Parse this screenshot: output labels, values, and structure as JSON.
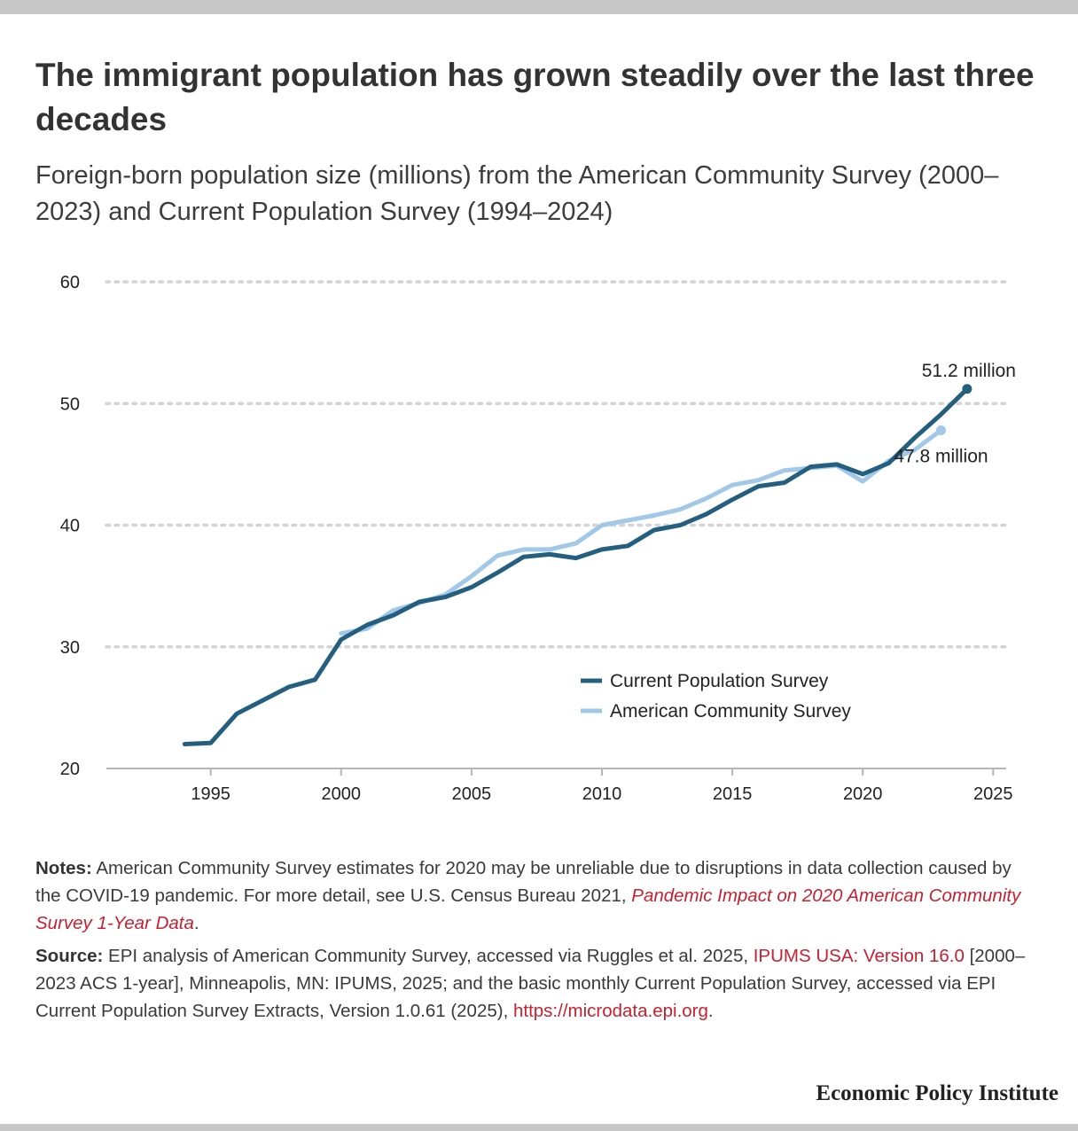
{
  "header": {
    "title": "The immigrant population has grown steadily over the last three decades",
    "subtitle": "Foreign-born population size (millions) from the American Community Survey (2000–2023) and Current Population Survey (1994–2024)"
  },
  "chart_data": {
    "type": "line",
    "xlim": [
      1991,
      2025.5
    ],
    "ylim": [
      20,
      60
    ],
    "x_ticks": [
      1995,
      2000,
      2005,
      2010,
      2015,
      2020,
      2025
    ],
    "y_ticks": [
      20,
      30,
      40,
      50,
      60
    ],
    "grid": "horizontal dotted",
    "legend_position": "bottom-right",
    "series": [
      {
        "name": "Current Population Survey",
        "color": "#245f80",
        "x": [
          1994,
          1995,
          1996,
          1997,
          1998,
          1999,
          2000,
          2001,
          2002,
          2003,
          2004,
          2005,
          2006,
          2007,
          2008,
          2009,
          2010,
          2011,
          2012,
          2013,
          2014,
          2015,
          2016,
          2017,
          2018,
          2019,
          2020,
          2021,
          2022,
          2023,
          2024
        ],
        "y": [
          22.0,
          22.1,
          24.5,
          25.6,
          26.7,
          27.3,
          30.6,
          31.8,
          32.6,
          33.7,
          34.1,
          34.9,
          36.1,
          37.4,
          37.6,
          37.3,
          38.0,
          38.3,
          39.6,
          40.0,
          40.9,
          42.1,
          43.2,
          43.5,
          44.8,
          45.0,
          44.2,
          45.1,
          47.2,
          49.1,
          51.2
        ],
        "end_label": "51.2 million"
      },
      {
        "name": "American Community Survey",
        "color": "#a1c8e7",
        "x": [
          2000,
          2001,
          2002,
          2003,
          2004,
          2005,
          2006,
          2007,
          2008,
          2009,
          2010,
          2011,
          2012,
          2013,
          2014,
          2015,
          2016,
          2017,
          2018,
          2019,
          2020,
          2021,
          2022,
          2023
        ],
        "y": [
          31.1,
          31.5,
          33.0,
          33.6,
          34.3,
          35.8,
          37.5,
          38.0,
          38.0,
          38.5,
          40.0,
          40.4,
          40.8,
          41.3,
          42.2,
          43.3,
          43.7,
          44.5,
          44.7,
          44.9,
          43.6,
          45.3,
          46.2,
          47.8
        ],
        "end_label": "47.8 million"
      }
    ]
  },
  "notes": {
    "label": "Notes:",
    "text": " American Community Survey estimates for 2020 may be unreliable due to disruptions in data collection caused by the COVID-19 pandemic. For more detail, see U.S. Census Bureau 2021, ",
    "link_text": "Pandemic Impact on 2020 American Community Survey 1-Year Data",
    "end": "."
  },
  "source": {
    "label": "Source:",
    "text1": " EPI analysis of American Community Survey, accessed via Ruggles et al. 2025, ",
    "link1": "IPUMS USA: Version 16.0",
    "text2": " [2000–2023 ACS 1-year], Minneapolis, MN: IPUMS, 2025; and the basic monthly Current Population Survey, accessed via EPI Current Population Survey Extracts, Version 1.0.61 (2025), ",
    "link2": "https://microdata.epi.org",
    "end": "."
  },
  "footer": {
    "brand": "Economic Policy Institute"
  }
}
